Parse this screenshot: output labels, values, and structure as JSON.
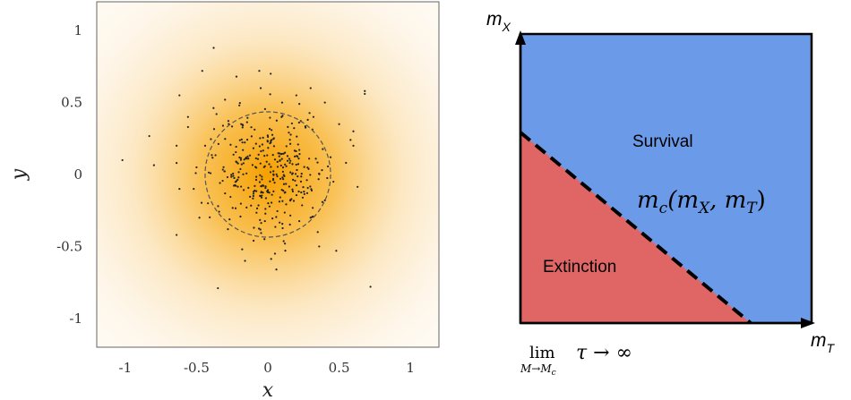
{
  "left_panel": {
    "x_axis_label": "x",
    "y_axis_label": "y",
    "x_ticks": [
      {
        "value": -1,
        "label": "-1"
      },
      {
        "value": -0.5,
        "label": "-0.5"
      },
      {
        "value": 0,
        "label": "0"
      },
      {
        "value": 0.5,
        "label": "0.5"
      },
      {
        "value": 1,
        "label": "1"
      }
    ],
    "y_ticks": [
      {
        "value": 1,
        "label": "1"
      },
      {
        "value": 0.5,
        "label": "0.5"
      },
      {
        "value": 0,
        "label": "0"
      },
      {
        "value": -0.5,
        "label": "-0.5"
      },
      {
        "value": -1,
        "label": "-1"
      }
    ],
    "xlim": [
      -1.2,
      1.2
    ],
    "ylim": [
      -1.2,
      1.2
    ],
    "circle_radius": 0.44,
    "density_color": "#f5a000",
    "points": [
      [
        -0.38,
        0.88
      ],
      [
        -0.46,
        0.72
      ],
      [
        -0.22,
        0.68
      ],
      [
        -0.06,
        0.72
      ],
      [
        0.02,
        0.7
      ],
      [
        0.3,
        0.6
      ],
      [
        0.68,
        0.58
      ],
      [
        0.68,
        0.56
      ],
      [
        -0.62,
        0.55
      ],
      [
        -0.56,
        0.4
      ],
      [
        -0.56,
        0.33
      ],
      [
        -0.64,
        0.2
      ],
      [
        -0.64,
        0.08
      ],
      [
        -1.02,
        0.1
      ],
      [
        -0.62,
        -0.1
      ],
      [
        -0.64,
        -0.42
      ],
      [
        -0.18,
        -0.52
      ],
      [
        -0.16,
        -0.6
      ],
      [
        0.06,
        -0.66
      ],
      [
        0.48,
        -0.53
      ],
      [
        0.6,
        0.3
      ],
      [
        0.58,
        0.24
      ],
      [
        0.6,
        0.2
      ],
      [
        0.4,
        0.5
      ],
      [
        -0.35,
        -0.79
      ],
      [
        0.72,
        -0.78
      ],
      [
        0.35,
        -0.4
      ],
      [
        -0.3,
        0.52
      ],
      [
        0.2,
        0.55
      ],
      [
        -0.05,
        0.6
      ],
      [
        0.44,
        0.12
      ],
      [
        -0.48,
        -0.3
      ],
      [
        -0.42,
        -0.2
      ],
      [
        0.4,
        -0.18
      ],
      [
        0.46,
        -0.05
      ],
      [
        -0.44,
        0.2
      ],
      [
        0.12,
        -0.48
      ],
      [
        -0.1,
        -0.46
      ],
      [
        0.3,
        -0.3
      ],
      [
        -0.28,
        -0.38
      ],
      [
        0.32,
        0.4
      ],
      [
        -0.36,
        0.42
      ],
      [
        0.1,
        0.5
      ],
      [
        -0.2,
        0.48
      ],
      [
        0.28,
        0.38
      ],
      [
        0.05,
        -0.55
      ],
      [
        0.36,
        -0.5
      ],
      [
        -0.5,
        0.05
      ],
      [
        0.5,
        0.35
      ],
      [
        -0.52,
        -0.1
      ]
    ]
  },
  "right_panel": {
    "y_axis_label": "m",
    "y_axis_subscript": "X",
    "x_axis_label": "m",
    "x_axis_subscript": "T",
    "survival_label": "Survival",
    "extinction_label": "Extinction",
    "curve_label_main": "m",
    "curve_label_sub": "c",
    "curve_label_args_open": "(m",
    "curve_label_arg1_sub": "X",
    "curve_label_sep": ", m",
    "curve_label_arg2_sub": "T",
    "curve_label_close": ")",
    "limit_text": "lim",
    "limit_subscript": "M→M",
    "limit_subscript_sub": "c",
    "limit_expression": "τ → ∞",
    "survival_color": "#6b9be8",
    "extinction_color": "#e06666"
  }
}
